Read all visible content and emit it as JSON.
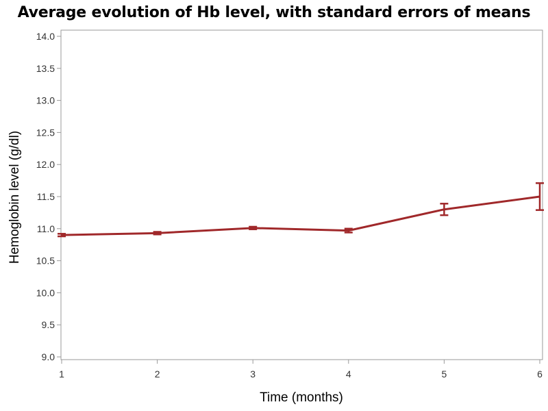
{
  "chart_data": {
    "type": "line",
    "title": "Average evolution of Hb level, with standard errors of means",
    "xlabel": "Time (months)",
    "ylabel": "Hemoglobin level (g/dl)",
    "x": [
      1,
      2,
      3,
      4,
      5,
      6
    ],
    "xlim": [
      1,
      6
    ],
    "ylim": [
      9.0,
      14.0
    ],
    "xticks": [
      "1",
      "2",
      "3",
      "4",
      "5",
      "6"
    ],
    "yticks": [
      "9.0",
      "9.5",
      "10.0",
      "10.5",
      "11.0",
      "11.5",
      "12.0",
      "12.5",
      "13.0",
      "13.5",
      "14.0"
    ],
    "grid": false,
    "legend": "none",
    "series": [
      {
        "values": [
          10.9,
          10.93,
          11.01,
          10.97,
          11.3,
          11.5
        ],
        "error_low": [
          10.88,
          10.91,
          10.99,
          10.94,
          11.21,
          11.29
        ],
        "error_high": [
          10.92,
          10.95,
          11.03,
          11.0,
          11.39,
          11.71
        ],
        "color": "#A0282A"
      }
    ]
  }
}
